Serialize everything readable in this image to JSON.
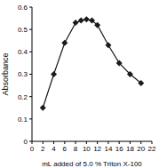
{
  "chart_data": {
    "type": "line",
    "x_label": "mL added of 5.0 % Triton X-100",
    "y_label": "Absorbance",
    "x": [
      2,
      4,
      6,
      8,
      9,
      10,
      11,
      12,
      14,
      16,
      18,
      20
    ],
    "values": [
      0.15,
      0.3,
      0.44,
      0.53,
      0.54,
      0.545,
      0.54,
      0.52,
      0.43,
      0.35,
      0.3,
      0.26
    ],
    "color": "#1a1a1a",
    "marker": "diamond",
    "xlim": [
      0,
      22
    ],
    "xticks": [
      0,
      2,
      4,
      6,
      8,
      10,
      12,
      14,
      16,
      18,
      20,
      22
    ],
    "ylim": [
      0,
      0.6
    ],
    "yticks": [
      0,
      0.1,
      0.2,
      0.3,
      0.4,
      0.5,
      0.6
    ],
    "grid": false
  }
}
